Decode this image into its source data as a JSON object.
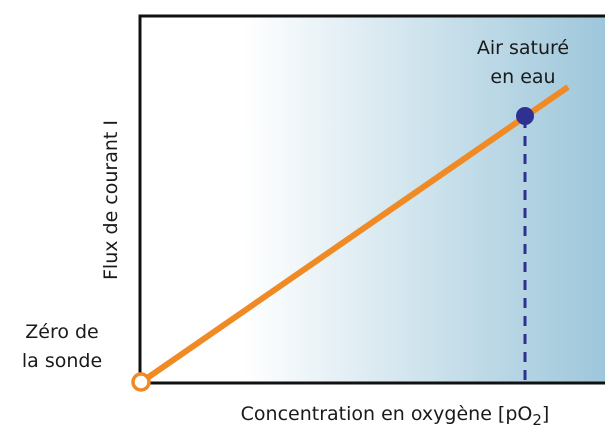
{
  "axes": {
    "y_label": "Flux de courant I",
    "x_label": {
      "text": "Concentration en oxygène [pO",
      "subscript": "2",
      "suffix": "]"
    }
  },
  "annotations": {
    "saturated": [
      "Air saturé",
      "en eau"
    ],
    "zero": [
      "Zéro de",
      "la sonde"
    ]
  }
}
